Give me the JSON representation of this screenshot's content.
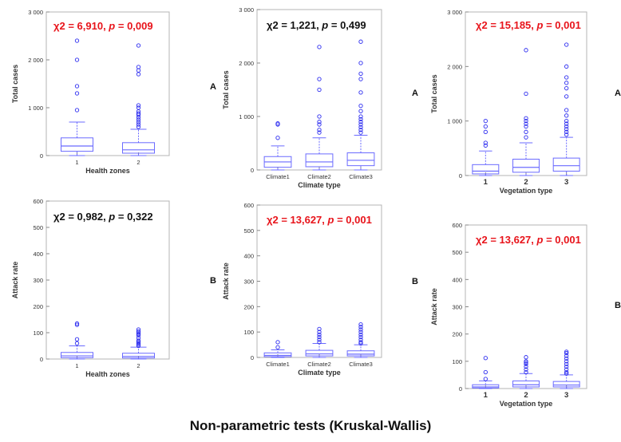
{
  "caption": "Non-parametric tests (Kruskal-Wallis)",
  "colors": {
    "box": "#6b6bff",
    "outlier": "#2d2df0",
    "stat_highlight": "#e8141b",
    "stat_normal": "#111111",
    "axis": "#333333"
  },
  "chart_data": [
    {
      "type": "boxplot",
      "ylabel": "Total cases",
      "xlabel": "Health zones",
      "side_label": "A",
      "categories": [
        "1",
        "2"
      ],
      "ylim": [
        0,
        3000
      ],
      "yticks": [
        0,
        1000,
        2000,
        3000
      ],
      "ytick_labels": [
        "0",
        "1 000",
        "2 000",
        "3 000"
      ],
      "stat": {
        "chi": "χ2 = 6,910",
        "sep": ", ",
        "p_sym": "p",
        "p_val": " = 0,009",
        "highlight": true
      },
      "boxes": [
        {
          "category": "1",
          "min": 0,
          "q1": 90,
          "median": 200,
          "q3": 370,
          "max": 700,
          "outliers": [
            950,
            1300,
            1450,
            2000,
            2400
          ]
        },
        {
          "category": "2",
          "min": 0,
          "q1": 50,
          "median": 120,
          "q3": 270,
          "max": 550,
          "outliers": [
            600,
            650,
            700,
            750,
            800,
            850,
            880,
            920,
            1000,
            1050,
            1700,
            1780,
            1850,
            2300
          ]
        }
      ]
    },
    {
      "type": "boxplot",
      "ylabel": "Total cases",
      "xlabel": "Climate type",
      "side_label": "A",
      "categories": [
        "Climate1",
        "Climate2",
        "Climate3"
      ],
      "ylim": [
        0,
        3000
      ],
      "yticks": [
        0,
        1000,
        2000,
        3000
      ],
      "ytick_labels": [
        "0",
        "1 000",
        "2 000",
        "3 000"
      ],
      "stat": {
        "chi": "χ2 = 1,221",
        "sep": ", ",
        "p_sym": "p",
        "p_val": " = 0,499",
        "highlight": false
      },
      "boxes": [
        {
          "category": "Climate1",
          "min": 0,
          "q1": 50,
          "median": 150,
          "q3": 250,
          "max": 450,
          "outliers": [
            600,
            850,
            870
          ]
        },
        {
          "category": "Climate2",
          "min": 0,
          "q1": 60,
          "median": 150,
          "q3": 300,
          "max": 600,
          "outliers": [
            700,
            750,
            850,
            900,
            1000,
            1500,
            1700,
            2300
          ]
        },
        {
          "category": "Climate3",
          "min": 0,
          "q1": 80,
          "median": 180,
          "q3": 320,
          "max": 650,
          "outliers": [
            700,
            750,
            800,
            850,
            900,
            950,
            1000,
            1100,
            1200,
            1450,
            1700,
            1800,
            2000,
            2400
          ]
        }
      ]
    },
    {
      "type": "boxplot",
      "ylabel": "Total cases",
      "xlabel": "Vegetation type",
      "side_label": "A",
      "categories": [
        "1",
        "2",
        "3"
      ],
      "ylim": [
        0,
        3000
      ],
      "yticks": [
        0,
        1000,
        2000,
        3000
      ],
      "ytick_labels": [
        "0",
        "1 000",
        "2 000",
        "3 000"
      ],
      "stat": {
        "chi": "χ2 = 15,185",
        "sep": ", ",
        "p_sym": "p",
        "p_val": " = 0,001",
        "highlight": true
      },
      "boxes": [
        {
          "category": "1",
          "min": 0,
          "q1": 30,
          "median": 80,
          "q3": 200,
          "max": 450,
          "outliers": [
            550,
            600,
            800,
            900,
            1000
          ]
        },
        {
          "category": "2",
          "min": 0,
          "q1": 60,
          "median": 150,
          "q3": 300,
          "max": 600,
          "outliers": [
            700,
            800,
            900,
            950,
            1000,
            1050,
            1500,
            2300
          ]
        },
        {
          "category": "3",
          "min": 0,
          "q1": 80,
          "median": 180,
          "q3": 320,
          "max": 700,
          "outliers": [
            750,
            800,
            850,
            900,
            950,
            1000,
            1100,
            1200,
            1450,
            1600,
            1700,
            1800,
            2000,
            2400
          ]
        }
      ]
    },
    {
      "type": "boxplot",
      "ylabel": "Attack rate",
      "xlabel": "Health zones",
      "side_label": "B",
      "categories": [
        "1",
        "2"
      ],
      "ylim": [
        0,
        600
      ],
      "yticks": [
        0,
        100,
        200,
        300,
        400,
        500,
        600
      ],
      "ytick_labels": [
        "0",
        "100",
        "200",
        "300",
        "400",
        "500",
        "600"
      ],
      "stat": {
        "chi": "χ2 = 0,982",
        "sep": ", ",
        "p_sym": "p",
        "p_val": " = 0,322",
        "highlight": false
      },
      "boxes": [
        {
          "category": "1",
          "min": 0,
          "q1": 5,
          "median": 12,
          "q3": 25,
          "max": 50,
          "outliers": [
            60,
            75,
            130,
            135
          ]
        },
        {
          "category": "2",
          "min": 0,
          "q1": 4,
          "median": 10,
          "q3": 22,
          "max": 45,
          "outliers": [
            50,
            55,
            60,
            65,
            70,
            80,
            90,
            95,
            100,
            105,
            112
          ]
        }
      ]
    },
    {
      "type": "boxplot",
      "ylabel": "Attack rate",
      "xlabel": "Climate type",
      "side_label": "B",
      "categories": [
        "Climate1",
        "Climate2",
        "Climate3"
      ],
      "ylim": [
        0,
        600
      ],
      "yticks": [
        0,
        100,
        200,
        300,
        400,
        500,
        600
      ],
      "ytick_labels": [
        "0",
        "100",
        "200",
        "300",
        "400",
        "500",
        "600"
      ],
      "stat": {
        "chi": "χ2 = 13,627",
        "sep": ", ",
        "p_sym": "p",
        "p_val": " = 0,001",
        "highlight": true
      },
      "boxes": [
        {
          "category": "Climate1",
          "min": 0,
          "q1": 3,
          "median": 8,
          "q3": 18,
          "max": 30,
          "outliers": [
            40,
            60
          ]
        },
        {
          "category": "Climate2",
          "min": 0,
          "q1": 6,
          "median": 14,
          "q3": 28,
          "max": 55,
          "outliers": [
            60,
            70,
            80,
            90,
            100,
            112
          ]
        },
        {
          "category": "Climate3",
          "min": 0,
          "q1": 6,
          "median": 13,
          "q3": 26,
          "max": 50,
          "outliers": [
            55,
            60,
            70,
            80,
            90,
            100,
            110,
            120,
            130
          ]
        }
      ]
    },
    {
      "type": "boxplot",
      "ylabel": "Attack rate",
      "xlabel": "Vegetation type",
      "side_label": "B",
      "categories": [
        "1",
        "2",
        "3"
      ],
      "ylim": [
        0,
        600
      ],
      "yticks": [
        0,
        100,
        200,
        300,
        400,
        500,
        600
      ],
      "ytick_labels": [
        "0",
        "100",
        "200",
        "300",
        "400",
        "500",
        "600"
      ],
      "stat": {
        "chi": "χ2 = 13,627",
        "sep": ", ",
        "p_sym": "p",
        "p_val": " = 0,001",
        "highlight": true
      },
      "boxes": [
        {
          "category": "1",
          "min": 0,
          "q1": 2,
          "median": 6,
          "q3": 14,
          "max": 28,
          "outliers": [
            35,
            60,
            112
          ]
        },
        {
          "category": "2",
          "min": 0,
          "q1": 6,
          "median": 14,
          "q3": 28,
          "max": 55,
          "outliers": [
            60,
            70,
            80,
            90,
            95,
            100,
            115
          ]
        },
        {
          "category": "3",
          "min": 0,
          "q1": 6,
          "median": 13,
          "q3": 26,
          "max": 50,
          "outliers": [
            55,
            60,
            70,
            80,
            90,
            100,
            110,
            120,
            130,
            135
          ]
        }
      ]
    }
  ]
}
